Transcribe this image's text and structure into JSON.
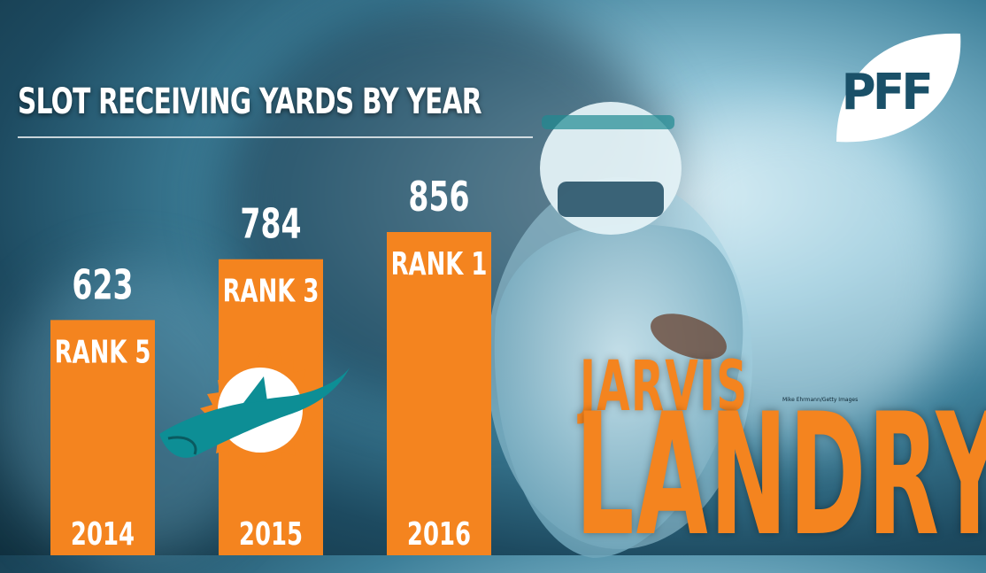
{
  "header": {
    "title": "SLOT RECEIVING YARDS BY YEAR"
  },
  "brand": {
    "logo_text": "PFF",
    "logo_icon": "football-icon",
    "team_logo_icon": "dolphins-logo-icon"
  },
  "player": {
    "first_name": "JARVIS",
    "last_name": "LANDRY",
    "photo_credit": "Mike Ehrmann/Getty Images"
  },
  "colors": {
    "bar": "#f4841f",
    "name": "#f4841f",
    "title": "#ffffff",
    "logo_bg": "#ffffff",
    "logo_text": "#1a5068"
  },
  "chart_data": {
    "type": "bar",
    "title": "SLOT RECEIVING YARDS BY YEAR",
    "categories": [
      "2014",
      "2015",
      "2016"
    ],
    "values": [
      623,
      784,
      856
    ],
    "value_labels": [
      "623",
      "784",
      "856"
    ],
    "rank_labels": [
      "RANK 5",
      "RANK 3",
      "RANK 1"
    ],
    "xlabel": "",
    "ylabel": "",
    "ylim": [
      0,
      856
    ],
    "grid": false,
    "legend": "none"
  }
}
